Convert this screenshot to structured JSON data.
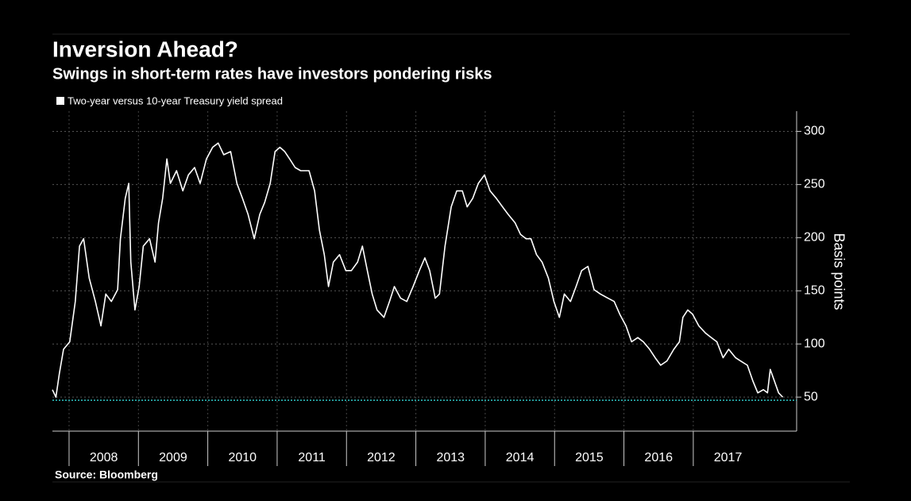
{
  "chart_data": {
    "type": "line",
    "title": "Inversion Ahead?",
    "subtitle": "Swings in short-term rates have investors pondering risks",
    "source": "Source: Bloomberg",
    "y_label": "Basis points",
    "series": [
      {
        "name": "Two-year versus 10-year Treasury yield spread",
        "color": "#ffffff",
        "x": [
          2007.76,
          2007.81,
          2007.86,
          2007.92,
          2008.01,
          2008.09,
          2008.15,
          2008.21,
          2008.29,
          2008.38,
          2008.46,
          2008.53,
          2008.61,
          2008.7,
          2008.74,
          2008.81,
          2008.86,
          2008.89,
          2008.95,
          2009.01,
          2009.07,
          2009.16,
          2009.24,
          2009.29,
          2009.35,
          2009.41,
          2009.46,
          2009.55,
          2009.64,
          2009.72,
          2009.81,
          2009.89,
          2009.98,
          2010.07,
          2010.15,
          2010.23,
          2010.33,
          2010.42,
          2010.5,
          2010.58,
          2010.67,
          2010.75,
          2010.82,
          2010.9,
          2010.97,
          2011.04,
          2011.11,
          2011.18,
          2011.26,
          2011.34,
          2011.46,
          2011.54,
          2011.61,
          2011.68,
          2011.74,
          2011.81,
          2011.9,
          2011.99,
          2012.07,
          2012.16,
          2012.23,
          2012.3,
          2012.37,
          2012.44,
          2012.54,
          2012.62,
          2012.69,
          2012.78,
          2012.87,
          2012.96,
          2013.05,
          2013.13,
          2013.2,
          2013.28,
          2013.34,
          2013.42,
          2013.51,
          2013.59,
          2013.67,
          2013.74,
          2013.82,
          2013.9,
          2013.99,
          2014.07,
          2014.16,
          2014.25,
          2014.33,
          2014.43,
          2014.51,
          2014.59,
          2014.66,
          2014.74,
          2014.82,
          2014.91,
          2014.99,
          2015.07,
          2015.14,
          2015.23,
          2015.31,
          2015.39,
          2015.48,
          2015.57,
          2015.66,
          2015.77,
          2015.86,
          2015.94,
          2016.03,
          2016.11,
          2016.2,
          2016.28,
          2016.37,
          2016.45,
          2016.53,
          2016.62,
          2016.72,
          2016.8,
          2016.85,
          2016.92,
          2016.99,
          2017.08,
          2017.18,
          2017.26,
          2017.34,
          2017.43,
          2017.51,
          2017.61,
          2017.68,
          2017.78,
          2017.86,
          2017.93,
          2018.01,
          2018.07,
          2018.11,
          2018.17,
          2018.23,
          2018.29
        ],
        "values": [
          57,
          50,
          72,
          95,
          102,
          140,
          192,
          199,
          162,
          140,
          117,
          147,
          140,
          151,
          199,
          237,
          251,
          177,
          132,
          154,
          192,
          199,
          177,
          214,
          237,
          274,
          251,
          263,
          244,
          259,
          266,
          251,
          274,
          285,
          289,
          278,
          281,
          251,
          237,
          222,
          199,
          222,
          233,
          251,
          281,
          285,
          281,
          274,
          266,
          263,
          263,
          244,
          207,
          184,
          154,
          177,
          184,
          169,
          169,
          177,
          192,
          169,
          147,
          132,
          125,
          140,
          154,
          143,
          140,
          154,
          169,
          181,
          169,
          143,
          147,
          192,
          229,
          244,
          244,
          229,
          237,
          251,
          259,
          244,
          237,
          229,
          222,
          214,
          203,
          199,
          199,
          184,
          177,
          162,
          140,
          125,
          147,
          140,
          154,
          169,
          173,
          151,
          147,
          143,
          140,
          128,
          117,
          102,
          106,
          102,
          95,
          87,
          80,
          84,
          95,
          102,
          125,
          132,
          128,
          117,
          110,
          106,
          102,
          87,
          95,
          87,
          84,
          80,
          65,
          54,
          57,
          54,
          76,
          65,
          54,
          50
        ]
      }
    ],
    "xlim": [
      2007.76,
      2018.49
    ],
    "xticks": [
      2008,
      2009,
      2010,
      2011,
      2012,
      2013,
      2014,
      2015,
      2016,
      2017
    ],
    "ylim": [
      18,
      319
    ],
    "yticks": [
      50,
      100,
      150,
      200,
      250,
      300
    ],
    "reference_line": {
      "value": 47,
      "color": "#2ec4c4"
    },
    "grid": true
  }
}
